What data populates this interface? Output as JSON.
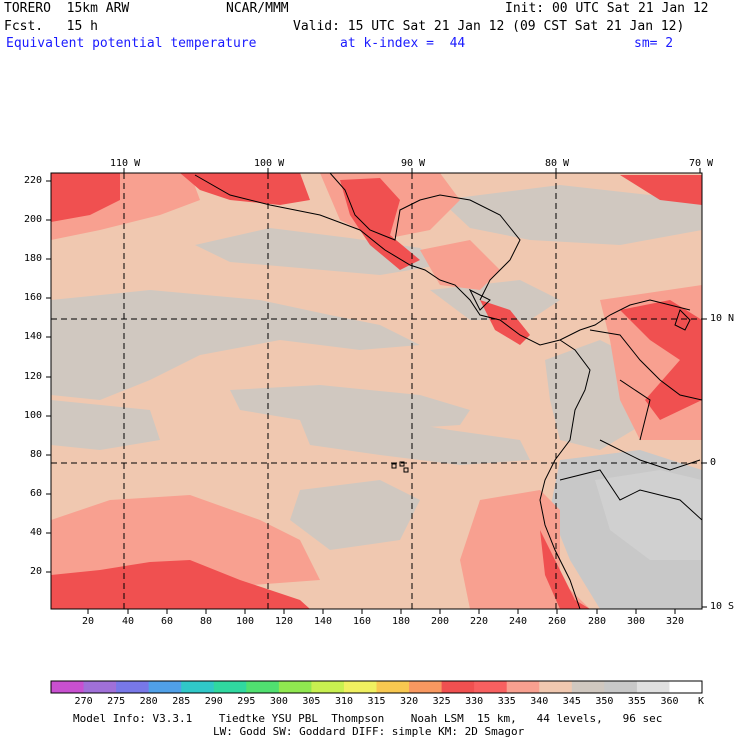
{
  "header": {
    "model": "TORERO  15km ARW",
    "center": "NCAR/MMM",
    "init": "Init: 00 UTC Sat 21 Jan 12",
    "fcst": "Fcst.   15 h",
    "valid": "Valid: 15 UTC Sat 21 Jan 12 (09 CST Sat 21 Jan 12)",
    "field": "Equivalent potential temperature",
    "level": "at k-index =  44",
    "smooth": "sm= 2"
  },
  "axes": {
    "top_lon": [
      "110 W",
      "100 W",
      "90 W",
      "80 W",
      "70 W"
    ],
    "right_lat": [
      "10 N",
      "0",
      "10 S"
    ],
    "left_y": [
      "220",
      "200",
      "180",
      "160",
      "140",
      "120",
      "100",
      "80",
      "60",
      "40",
      "20"
    ],
    "bottom_x": [
      "20",
      "40",
      "60",
      "80",
      "100",
      "120",
      "140",
      "160",
      "180",
      "200",
      "220",
      "240",
      "260",
      "280",
      "300",
      "320"
    ]
  },
  "colorbar": {
    "labels": [
      "270",
      "275",
      "280",
      "285",
      "290",
      "295",
      "300",
      "305",
      "310",
      "315",
      "320",
      "325",
      "330",
      "335",
      "340",
      "345",
      "350",
      "355",
      "360"
    ],
    "unit": "K",
    "colors": [
      "#c850d0",
      "#a070d8",
      "#7878e8",
      "#50a0e8",
      "#30c8c8",
      "#30d8a0",
      "#50e070",
      "#90e850",
      "#c8f050",
      "#f0f060",
      "#f8c850",
      "#f89860",
      "#f05050",
      "#f86060",
      "#f8a090",
      "#f0c8b0",
      "#d0c8c0",
      "#c8c8c8",
      "#e0e0e0",
      "#ffffff"
    ]
  },
  "footer": {
    "line1": "Model Info: V3.3.1    Tiedtke YSU PBL  Thompson    Noah LSM  15 km,   44 levels,   96 sec",
    "line2": "LW: Godd SW: Goddard DIFF: simple KM: 2D Smagor"
  }
}
